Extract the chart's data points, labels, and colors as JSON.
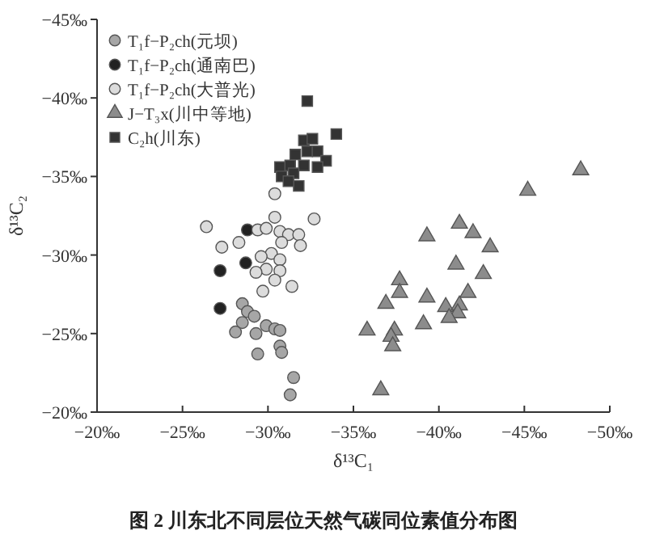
{
  "chart_data": {
    "type": "scatter",
    "title": "图 2  川东北不同层位天然气碳同位素值分布图",
    "xlabel": "δ¹³C₁",
    "ylabel": "δ¹³C₂",
    "xlim": [
      -20,
      -50
    ],
    "ylim": [
      -20,
      -45
    ],
    "xticks": [
      {
        "value": -20,
        "label": "−20‰"
      },
      {
        "value": -25,
        "label": "−25‰"
      },
      {
        "value": -30,
        "label": "−30‰"
      },
      {
        "value": -35,
        "label": "−35‰"
      },
      {
        "value": -40,
        "label": "−40‰"
      },
      {
        "value": -45,
        "label": "−45‰"
      },
      {
        "value": -50,
        "label": "−50‰"
      }
    ],
    "yticks": [
      {
        "value": -20,
        "label": "−20‰"
      },
      {
        "value": -25,
        "label": "−25‰"
      },
      {
        "value": -30,
        "label": "−30‰"
      },
      {
        "value": -35,
        "label": "−35‰"
      },
      {
        "value": -40,
        "label": "−40‰"
      },
      {
        "value": -45,
        "label": "−45‰"
      }
    ],
    "legend": "top left",
    "grid": false,
    "series": [
      {
        "name": "T₁f−P₂ch(元坝)",
        "color": "#a6a6a6",
        "marker": "circle",
        "x": [
          -28.5,
          -28.8,
          -29.2,
          -28.5,
          -28.1,
          -29.3,
          -29.9,
          -30.4,
          -30.7,
          -30.7,
          -30.8,
          -29.4,
          -31.5,
          -31.3
        ],
        "values": [
          -26.9,
          -26.4,
          -26.1,
          -25.7,
          -25.1,
          -25.0,
          -25.5,
          -25.3,
          -25.2,
          -24.2,
          -23.8,
          -23.7,
          -22.2,
          -21.1
        ]
      },
      {
        "name": "T₁f−P₂ch(通南巴)",
        "color": "#222222",
        "marker": "circle",
        "x": [
          -28.8,
          -27.2,
          -28.7,
          -27.2
        ],
        "values": [
          -31.6,
          -29.0,
          -29.5,
          -26.6
        ]
      },
      {
        "name": "T₁f−P₂ch(大普光)",
        "color": "#dcdcdc",
        "marker": "circle",
        "x": [
          -30.4,
          -26.4,
          -32.7,
          -30.4,
          -29.4,
          -29.9,
          -30.7,
          -31.2,
          -31.8,
          -27.3,
          -28.3,
          -30.8,
          -31.9,
          -30.2,
          -29.6,
          -30.7,
          -29.9,
          -30.7,
          -29.3,
          -30.4,
          -29.7,
          -31.4
        ],
        "values": [
          -33.9,
          -31.8,
          -32.3,
          -32.4,
          -31.6,
          -31.7,
          -31.5,
          -31.3,
          -31.3,
          -30.5,
          -30.8,
          -30.8,
          -30.6,
          -30.1,
          -29.9,
          -29.7,
          -29.1,
          -29.0,
          -28.9,
          -28.4,
          -27.7,
          -28.0
        ]
      },
      {
        "name": "J−T₃x(川中等地)",
        "color": "#8c8c8c",
        "marker": "triangle",
        "x": [
          -48.3,
          -45.2,
          -41.2,
          -42.0,
          -39.3,
          -43.0,
          -41.0,
          -42.6,
          -37.7,
          -37.7,
          -41.7,
          -39.3,
          -36.9,
          -40.4,
          -41.2,
          -41.1,
          -40.6,
          -39.1,
          -35.8,
          -37.4,
          -37.2,
          -37.3,
          -36.6
        ],
        "values": [
          -35.4,
          -34.1,
          -32.0,
          -31.4,
          -31.2,
          -30.5,
          -29.4,
          -28.8,
          -28.4,
          -27.6,
          -27.6,
          -27.3,
          -26.9,
          -26.7,
          -26.8,
          -26.3,
          -26.0,
          -25.6,
          -25.2,
          -25.2,
          -24.8,
          -24.2,
          -21.4
        ]
      },
      {
        "name": "C₂h(川东)",
        "color": "#333333",
        "marker": "square",
        "x": [
          -32.3,
          -34.0,
          -32.1,
          -32.6,
          -31.6,
          -32.3,
          -32.9,
          -33.4,
          -30.7,
          -31.3,
          -32.1,
          -32.9,
          -30.8,
          -31.5,
          -31.8,
          -31.2
        ],
        "values": [
          -39.8,
          -37.7,
          -37.3,
          -37.4,
          -36.4,
          -36.6,
          -36.6,
          -36.0,
          -35.6,
          -35.7,
          -35.7,
          -35.6,
          -35.0,
          -35.2,
          -34.4,
          -34.7
        ]
      }
    ]
  }
}
